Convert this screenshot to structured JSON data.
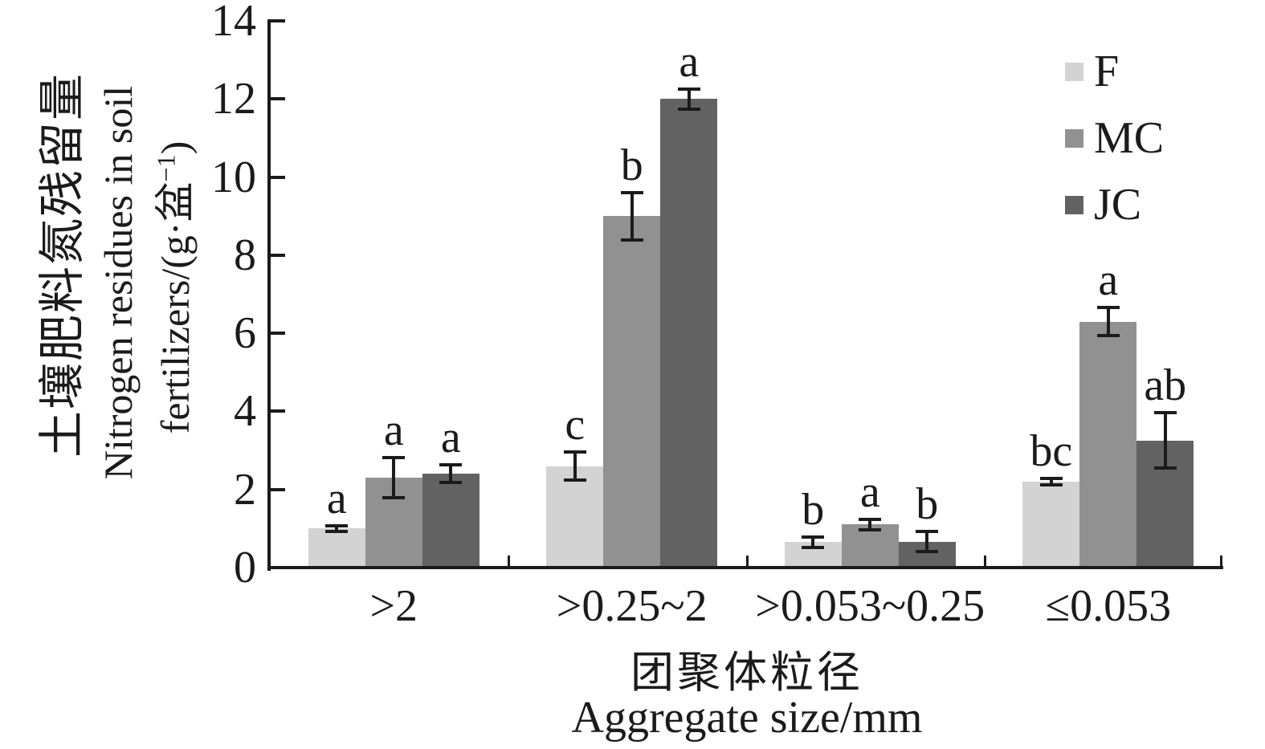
{
  "figure": {
    "background": "#ffffff",
    "text_color": "#1b1b1b"
  },
  "chart_data": {
    "type": "bar",
    "title": "",
    "categories": [
      ">2",
      ">0.25~2",
      ">0.053~0.25",
      "≤0.053"
    ],
    "series": [
      {
        "name": "F",
        "color": "#d3d3d3",
        "values": [
          1.0,
          2.6,
          0.65,
          2.2
        ],
        "errors": [
          0.12,
          0.4,
          0.17,
          0.12
        ],
        "sig_letters": [
          "a",
          "c",
          "b",
          "bc"
        ]
      },
      {
        "name": "MC",
        "color": "#919191",
        "values": [
          2.3,
          9.0,
          1.1,
          6.3
        ],
        "errors": [
          0.55,
          0.65,
          0.18,
          0.4
        ],
        "sig_letters": [
          "a",
          "b",
          "a",
          "a"
        ]
      },
      {
        "name": "JC",
        "color": "#626262",
        "values": [
          2.4,
          12.0,
          0.66,
          3.25
        ],
        "errors": [
          0.27,
          0.3,
          0.3,
          0.75
        ],
        "sig_letters": [
          "a",
          "a",
          "b",
          "ab"
        ]
      }
    ],
    "ylim": [
      0,
      14
    ],
    "yticks": [
      0,
      2,
      4,
      6,
      8,
      10,
      12,
      14
    ],
    "grid": false,
    "legend_position": "top-right",
    "axis_color": "#1b1b1b",
    "ylabel": {
      "zh": "土壤肥料氮残留量",
      "en_line1": "Nitrogen residues in soil",
      "en_line2_prefix": "fertilizers/(g·盆",
      "en_line2_sup": "−1",
      "en_line2_suffix": ")"
    },
    "xlabel": {
      "zh": "团聚体粒径",
      "en": "Aggregate size/mm"
    }
  }
}
